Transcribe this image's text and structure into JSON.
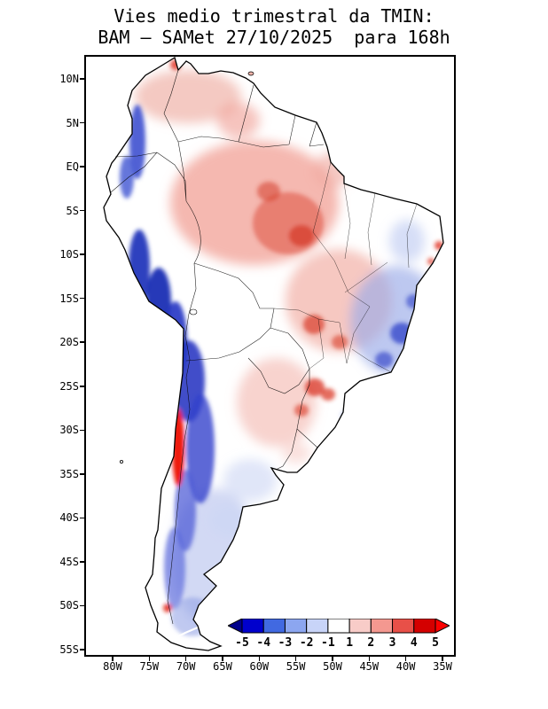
{
  "title": {
    "line1": "Vies medio trimestral da TMIN:",
    "line2": "BAM – SAMet 27/10/2025  para 168h"
  },
  "axes": {
    "lat_ticks": [
      "10N",
      "5N",
      "EQ",
      "5S",
      "10S",
      "15S",
      "20S",
      "25S",
      "30S",
      "35S",
      "40S",
      "45S",
      "50S",
      "55S"
    ],
    "lon_ticks": [
      "80W",
      "75W",
      "70W",
      "65W",
      "60W",
      "55W",
      "50W",
      "45W",
      "40W",
      "35W"
    ]
  },
  "colorbar": {
    "labels": [
      "-5",
      "-4",
      "-3",
      "-2",
      "-1",
      "1",
      "2",
      "3",
      "4",
      "5"
    ],
    "box_colors": [
      "#0000cd",
      "#4169e1",
      "#8ca6f0",
      "#c8d4f8",
      "#ffffff",
      "#f8ccc8",
      "#f49890",
      "#e85048",
      "#d40000"
    ],
    "left_arrow_color": "#00008b",
    "right_arrow_color": "#fb0000",
    "range": [
      -5,
      5
    ]
  }
}
